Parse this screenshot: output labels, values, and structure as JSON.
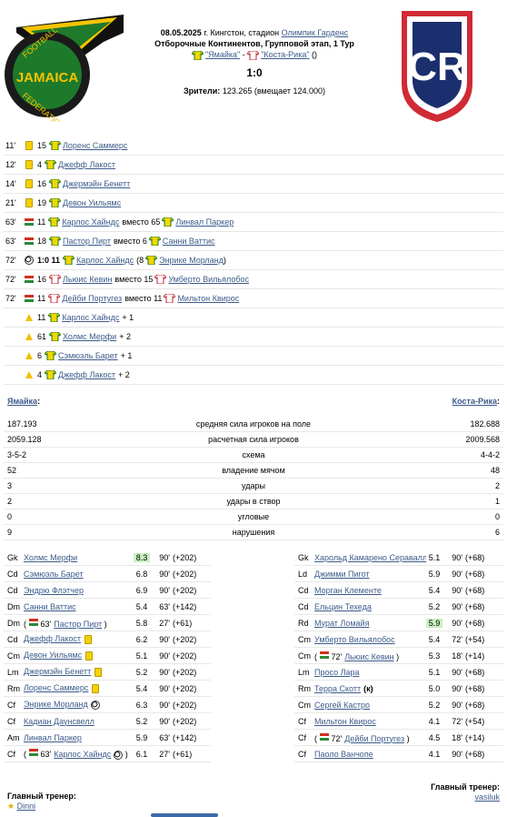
{
  "match": {
    "date": "08.05.2025",
    "place": "г. Кингстон, стадион",
    "stadium": "Олимпик Гарденс",
    "stage": "Отборочные Континентов, Групповой этап, 1 Тур",
    "home_team": "\"Ямайка\"",
    "away_team": "\"Коста-Рика\"",
    "sep": " - ",
    "paren": " ()",
    "score": "1:0",
    "attendance_label": "Зрители:",
    "attendance": "123.265 (вмещает 124.000)"
  },
  "events": [
    {
      "min": "11'",
      "type": "card",
      "num": "15",
      "team": "home",
      "text": "Лоренс Саммерс",
      "rest": ""
    },
    {
      "min": "12'",
      "type": "card",
      "num": "4",
      "team": "home",
      "text": "Джефф Лакост",
      "rest": ""
    },
    {
      "min": "14'",
      "type": "card",
      "num": "16",
      "team": "home",
      "text": "Джермэйн Бенетт",
      "rest": ""
    },
    {
      "min": "21'",
      "type": "card",
      "num": "19",
      "team": "home",
      "text": "Девон Уильямс",
      "rest": ""
    },
    {
      "min": "63'",
      "type": "sub",
      "num": "11",
      "team": "home",
      "text": "Карлос Хайндс",
      "mid": "вместо 65",
      "text2": "Линвал Паркер",
      "team2": "home"
    },
    {
      "min": "63'",
      "type": "sub",
      "num": "18",
      "team": "home",
      "text": "Пастор Пирт",
      "mid": "вместо 6",
      "text2": "Санни Ваттис",
      "team2": "home"
    },
    {
      "min": "72'",
      "type": "goal",
      "num": "1:0 11",
      "team": "home",
      "text": "Карлос Хайндс",
      "mid": "(8",
      "text2": "Энрике Морланд",
      "team2": "home",
      "close": ")"
    },
    {
      "min": "72'",
      "type": "sub",
      "num": "16",
      "team": "away",
      "text": "Льюис Кевин",
      "mid": "вместо 15",
      "text2": "Умберто Вильялобос",
      "team2": "away"
    },
    {
      "min": "72'",
      "type": "sub",
      "num": "11",
      "team": "away",
      "text": "Дейби Португез",
      "mid": "вместо 11",
      "text2": "Мильтон Квирос",
      "team2": "away"
    },
    {
      "min": "",
      "type": "assist",
      "num": "11",
      "team": "home",
      "text": "Карлос Хайндс",
      "rest": "+ 1"
    },
    {
      "min": "",
      "type": "assist",
      "num": "61",
      "team": "home",
      "text": "Холмс Мерфи",
      "rest": "+ 2"
    },
    {
      "min": "",
      "type": "assist",
      "num": "6",
      "team": "home",
      "text": "Сэмюэль Барет",
      "rest": "+ 1"
    },
    {
      "min": "",
      "type": "assist",
      "num": "4",
      "team": "home",
      "text": "Джефф Лакост",
      "rest": "+ 2"
    }
  ],
  "teams": {
    "home": "Ямайка",
    "away": "Коста-Рика",
    "colon": ":"
  },
  "stats": [
    {
      "l": "187.193",
      "c": "средняя сила игроков на поле",
      "r": "182.688"
    },
    {
      "l": "2059.128",
      "c": "расчетная сила игроков",
      "r": "2009.568"
    },
    {
      "l": "3-5-2",
      "c": "схема",
      "r": "4-4-2"
    },
    {
      "l": "52",
      "c": "владение мячом",
      "r": "48"
    },
    {
      "l": "3",
      "c": "удары",
      "r": "2"
    },
    {
      "l": "2",
      "c": "удары в створ",
      "r": "1"
    },
    {
      "l": "0",
      "c": "угловые",
      "r": "0"
    },
    {
      "l": "9",
      "c": "нарушения",
      "r": "6"
    }
  ],
  "home_lineup": [
    {
      "pos": "Gk",
      "name": "Холмс Мерфи",
      "rating": "8.3",
      "hi": true,
      "min": "90'",
      "power": "(+202)"
    },
    {
      "pos": "Cd",
      "name": "Сэмюэль Барет",
      "rating": "6.8",
      "min": "90'",
      "power": "(+202)"
    },
    {
      "pos": "Cd",
      "name": "Эндрю Флэтчер",
      "rating": "6.9",
      "min": "90'",
      "power": "(+202)"
    },
    {
      "pos": "Dm",
      "name": "Санни Ваттис",
      "rating": "5.4",
      "min": "63'",
      "power": "(+142)"
    },
    {
      "pos": "Dm",
      "name": "Пастор Пирт",
      "pre": "( ",
      "sub": "63'",
      "post": " )",
      "rating": "5.8",
      "min": "27'",
      "power": "(+61)"
    },
    {
      "pos": "Cd",
      "name": "Джефф Лакост",
      "card": true,
      "rating": "6.2",
      "min": "90'",
      "power": "(+202)"
    },
    {
      "pos": "Cm",
      "name": "Девон Уильямс",
      "card": true,
      "rating": "5.1",
      "min": "90'",
      "power": "(+202)"
    },
    {
      "pos": "Lm",
      "name": "Джермэйн Бенетт",
      "card": true,
      "rating": "5.2",
      "min": "90'",
      "power": "(+202)"
    },
    {
      "pos": "Rm",
      "name": "Лоренс Саммерс",
      "card": true,
      "rating": "5.4",
      "min": "90'",
      "power": "(+202)"
    },
    {
      "pos": "Cf",
      "name": "Энрике Морланд",
      "ball": true,
      "rating": "6.3",
      "min": "90'",
      "power": "(+202)"
    },
    {
      "pos": "Cf",
      "name": "Кадиан Даунсвелл",
      "rating": "5.2",
      "min": "90'",
      "power": "(+202)"
    },
    {
      "pos": "Am",
      "name": "Линвал Паркер",
      "rating": "5.9",
      "min": "63'",
      "power": "(+142)"
    },
    {
      "pos": "Cf",
      "name": "Карлос Хайндс",
      "pre": "( ",
      "sub": "63'",
      "ball": true,
      "post": " )",
      "rating": "6.1",
      "min": "27'",
      "power": "(+61)"
    }
  ],
  "away_lineup": [
    {
      "pos": "Gk",
      "name": "Харольд Камарено Серавалли",
      "rating": "5.1",
      "min": "90'",
      "power": "(+68)"
    },
    {
      "pos": "Ld",
      "name": "Джимми Пигот",
      "rating": "5.9",
      "min": "90'",
      "power": "(+68)"
    },
    {
      "pos": "Cd",
      "name": "Морган Клементе",
      "rating": "5.4",
      "min": "90'",
      "power": "(+68)"
    },
    {
      "pos": "Cd",
      "name": "Ельцин Техеда",
      "rating": "5.2",
      "min": "90'",
      "power": "(+68)"
    },
    {
      "pos": "Rd",
      "name": "Мурат Ломайя",
      "rating": "5.9",
      "hi": true,
      "min": "90'",
      "power": "(+68)"
    },
    {
      "pos": "Cm",
      "name": "Умберто Вильялобос",
      "rating": "5.4",
      "min": "72'",
      "power": "(+54)"
    },
    {
      "pos": "Cm",
      "name": "Льюис Кевин",
      "pre": "( ",
      "sub": "72'",
      "post": " )",
      "rating": "5.3",
      "min": "18'",
      "power": "(+14)"
    },
    {
      "pos": "Lm",
      "name": "Просо Лара",
      "rating": "5.1",
      "min": "90'",
      "power": "(+68)"
    },
    {
      "pos": "Rm",
      "name": "Терра Скотт",
      "cap": "(к)",
      "rating": "5.0",
      "min": "90'",
      "power": "(+68)"
    },
    {
      "pos": "Cm",
      "name": "Сергей Кастро",
      "rating": "5.2",
      "min": "90'",
      "power": "(+68)"
    },
    {
      "pos": "Cf",
      "name": "Мильтон Квирос",
      "rating": "4.1",
      "min": "72'",
      "power": "(+54)"
    },
    {
      "pos": "Cf",
      "name": "Дейби Португез",
      "pre": "( ",
      "sub": "72'",
      "post": " )",
      "rating": "4.5",
      "min": "18'",
      "power": "(+14)"
    },
    {
      "pos": "Cf",
      "name": "Паоло Ванчопе",
      "rating": "4.1",
      "min": "90'",
      "power": "(+68)"
    }
  ],
  "coaches": {
    "label": "Главный тренер:",
    "home": "Dinni",
    "away": "vasiluk"
  },
  "colors": {
    "link": "#3c5b8b",
    "home_shirt": "#f2d700",
    "away_shirt": "#ffffff",
    "highlight": "#c8f0c0",
    "card": "#f5d000"
  }
}
